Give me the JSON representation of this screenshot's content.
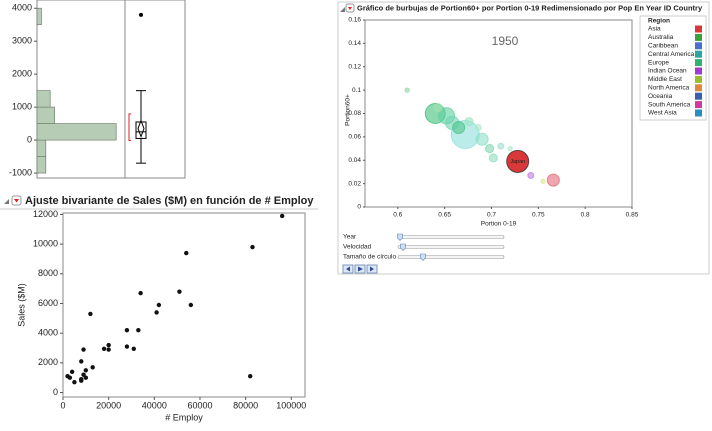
{
  "chart_data": [
    {
      "type": "histogram",
      "orientation": "horizontal",
      "ylim": [
        -1150,
        4250
      ],
      "yticks": [
        4000,
        3000,
        2000,
        1000,
        0,
        -1000
      ],
      "bins": [
        -1000,
        -500,
        0,
        500,
        1000,
        1500,
        2000,
        2500,
        3000,
        3500,
        4000
      ],
      "counts": [
        1,
        1,
        9,
        2,
        1.5,
        0,
        0,
        0,
        0,
        0.5
      ],
      "color": "#b7ccb4",
      "box": {
        "min": -700,
        "q1": 50,
        "median": 250,
        "q3": 550,
        "max": 1500,
        "mean": 350,
        "outliers": [
          3800
        ]
      }
    },
    {
      "type": "scatter",
      "title": "Ajuste bivariante de Sales ($M) en función de # Employ",
      "xlabel": "# Employ",
      "ylabel": "Sales ($M)",
      "color": "#111",
      "xlim": [
        0,
        106000
      ],
      "ylim": [
        -300,
        12100
      ],
      "xticks": [
        0,
        20000,
        40000,
        60000,
        80000,
        100000
      ],
      "yticks": [
        0,
        2000,
        4000,
        6000,
        8000,
        10000,
        12000
      ],
      "x": [
        96000,
        83000,
        54000,
        82000,
        51000,
        56000,
        34000,
        42000,
        41000,
        28000,
        33000,
        28000,
        31000,
        12000,
        20000,
        18000,
        20000,
        9000,
        8000,
        13000,
        10000,
        9000,
        8000,
        10000,
        4000,
        3000,
        5000,
        8000,
        2000
      ],
      "values": [
        11900,
        9800,
        9400,
        1100,
        6800,
        5900,
        6700,
        5900,
        5400,
        4200,
        4200,
        3100,
        2950,
        5300,
        3200,
        2950,
        2900,
        2900,
        2100,
        1700,
        1500,
        1200,
        900,
        1000,
        1400,
        1000,
        700,
        800,
        1100
      ]
    },
    {
      "type": "bubble",
      "title": "Gráfico de burbujas de Portion60+ por Portion 0-19 Redimensionado por Pop En Year ID Country",
      "xlabel": "Portion 0-19",
      "ylabel": "Portion60+",
      "year": "1950",
      "legend_title": "Region",
      "xlim": [
        0.565,
        0.85
      ],
      "ylim": [
        0,
        0.16
      ],
      "xticks": [
        0.6,
        0.65,
        0.7,
        0.75,
        0.8,
        0.85
      ],
      "yticks": [
        0,
        0.02,
        0.04,
        0.06,
        0.08,
        0.1,
        0.12,
        0.14,
        0.16
      ],
      "x": [
        0.61,
        0.64,
        0.652,
        0.658,
        0.672,
        0.665,
        0.69,
        0.698,
        0.702,
        0.676,
        0.686,
        0.71,
        0.728,
        0.742,
        0.755,
        0.766,
        0.643,
        0.72
      ],
      "values": [
        0.1,
        0.08,
        0.078,
        0.072,
        0.062,
        0.068,
        0.058,
        0.05,
        0.042,
        0.073,
        0.068,
        0.052,
        0.039,
        0.027,
        0.022,
        0.023,
        0.085,
        0.05
      ],
      "sizes": [
        3,
        68,
        44,
        30,
        134,
        25,
        25,
        11,
        11,
        11,
        6,
        6,
        83,
        6,
        3,
        25,
        11,
        3
      ],
      "colors": [
        "#8fd8a0",
        "#3fbf7a",
        "#5fd0a0",
        "#6fd6b4",
        "#8fe0dc",
        "#4fc48a",
        "#8fe0c8",
        "#7fd8b0",
        "#8fe0c0",
        "#9fe4c0",
        "#aee8c8",
        "#9fe0d0",
        "#d9373a",
        "#c07ee0",
        "#d8e890",
        "#e66a7a",
        "#9ee0b0",
        "#aee8c8"
      ],
      "labels": [
        null,
        null,
        null,
        null,
        null,
        null,
        null,
        null,
        null,
        null,
        null,
        null,
        "Japan",
        null,
        null,
        null,
        null,
        null
      ],
      "legend": [
        {
          "name": "Asia",
          "color": "#d9373a"
        },
        {
          "name": "Australia",
          "color": "#3aa13c"
        },
        {
          "name": "Caribbean",
          "color": "#4b6fd1"
        },
        {
          "name": "Central America",
          "color": "#2aa6a0"
        },
        {
          "name": "Europe",
          "color": "#2eb36f"
        },
        {
          "name": "Indian Ocean",
          "color": "#a03ad0"
        },
        {
          "name": "Middle East",
          "color": "#9bbd2a"
        },
        {
          "name": "North America",
          "color": "#e0873a"
        },
        {
          "name": "Oceania",
          "color": "#3a5fb0"
        },
        {
          "name": "South America",
          "color": "#d03aa0"
        },
        {
          "name": "West Asia",
          "color": "#2a8fc0"
        }
      ],
      "sliders": [
        "Year",
        "Velocidad",
        "Tamaño de círculo"
      ]
    }
  ]
}
